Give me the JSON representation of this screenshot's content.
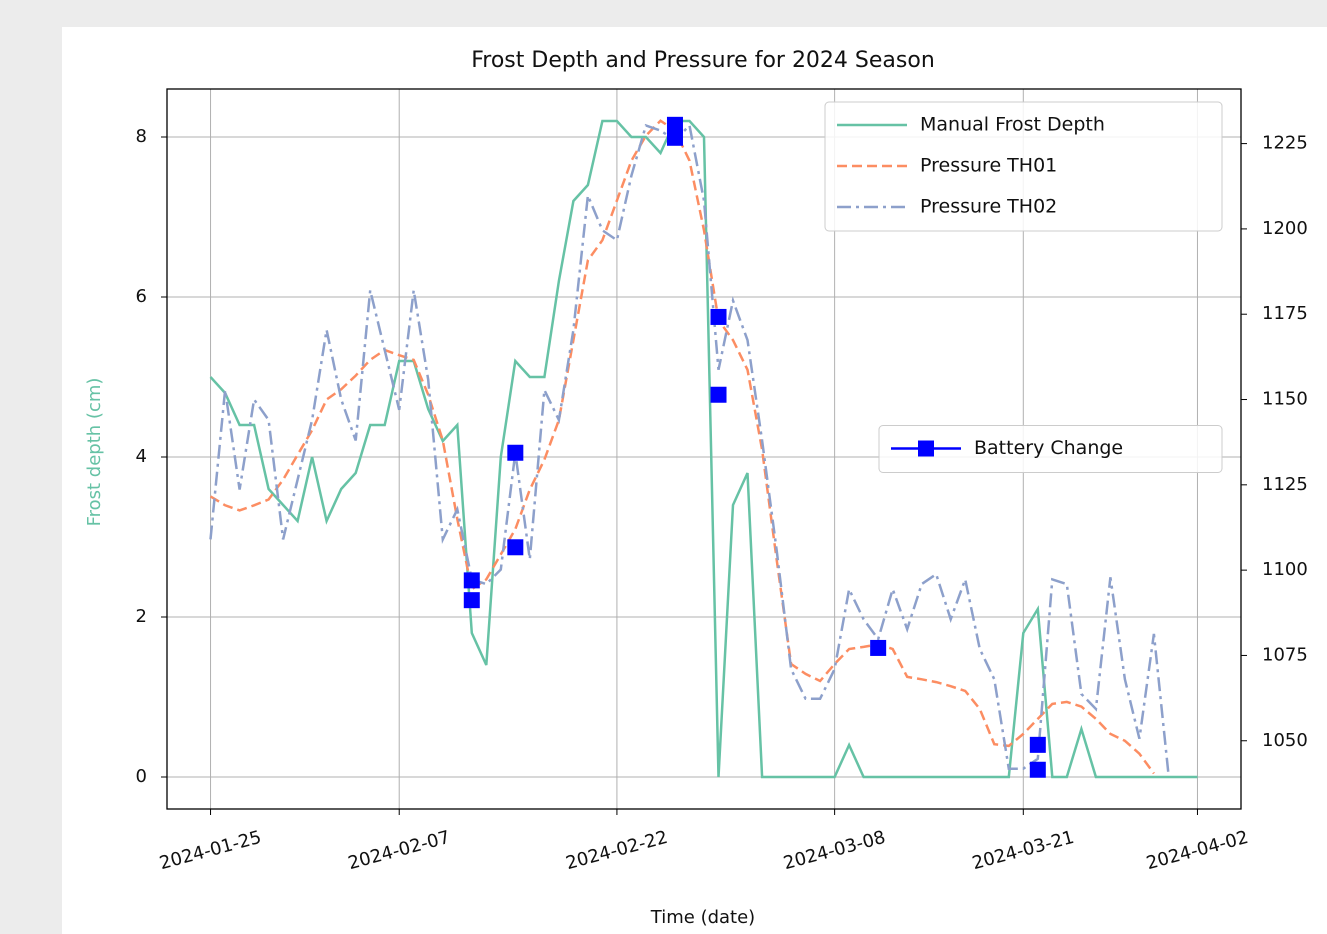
{
  "chart_data": {
    "type": "line",
    "title": "Frost Depth and Pressure for 2024 Season",
    "xlabel": "Time (date)",
    "ylabel": "Frost depth (cm)",
    "ylabel_color": "#66c2a5",
    "x": [
      "2024-01-25",
      "2024-01-26",
      "2024-01-27",
      "2024-01-28",
      "2024-01-29",
      "2024-01-30",
      "2024-01-31",
      "2024-02-01",
      "2024-02-02",
      "2024-02-03",
      "2024-02-04",
      "2024-02-05",
      "2024-02-06",
      "2024-02-07",
      "2024-02-08",
      "2024-02-09",
      "2024-02-10",
      "2024-02-11",
      "2024-02-12",
      "2024-02-13",
      "2024-02-14",
      "2024-02-15",
      "2024-02-16",
      "2024-02-17",
      "2024-02-18",
      "2024-02-19",
      "2024-02-20",
      "2024-02-21",
      "2024-02-22",
      "2024-02-23",
      "2024-02-24",
      "2024-02-25",
      "2024-02-26",
      "2024-02-27",
      "2024-02-28",
      "2024-02-29",
      "2024-03-01",
      "2024-03-02",
      "2024-03-03",
      "2024-03-04",
      "2024-03-05",
      "2024-03-06",
      "2024-03-07",
      "2024-03-08",
      "2024-03-09",
      "2024-03-10",
      "2024-03-11",
      "2024-03-12",
      "2024-03-13",
      "2024-03-14",
      "2024-03-15",
      "2024-03-16",
      "2024-03-17",
      "2024-03-18",
      "2024-03-19",
      "2024-03-20",
      "2024-03-21",
      "2024-03-22",
      "2024-03-23",
      "2024-03-24",
      "2024-03-25",
      "2024-03-26",
      "2024-03-27",
      "2024-03-28",
      "2024-03-29",
      "2024-03-30",
      "2024-03-31",
      "2024-04-01",
      "2024-04-02"
    ],
    "series": [
      {
        "name": "Manual Frost Depth",
        "color": "#66c2a5",
        "style": "solid",
        "axis": "y",
        "legend": "upper right",
        "values": [
          5.0,
          4.8,
          4.4,
          4.4,
          3.6,
          3.4,
          3.2,
          4.0,
          3.2,
          3.6,
          3.8,
          4.4,
          4.4,
          5.2,
          5.2,
          4.6,
          4.2,
          4.4,
          1.8,
          1.4,
          4.0,
          5.2,
          5.0,
          5.0,
          6.2,
          7.2,
          7.4,
          8.2,
          8.2,
          8.0,
          8.0,
          7.8,
          8.2,
          8.2,
          8.0,
          0,
          3.4,
          3.8,
          0,
          0,
          0,
          0,
          0,
          0,
          0.4,
          0,
          0,
          0,
          0,
          0,
          0,
          0,
          0,
          0,
          0,
          0,
          1.8,
          2.1,
          0,
          0,
          0.6,
          0,
          0,
          0,
          0,
          0,
          0,
          0,
          0
        ]
      },
      {
        "name": "Pressure TH01",
        "color": "#fc8d62",
        "style": "dashed",
        "axis": "y2",
        "legend": "upper right",
        "values": [
          1121.6,
          1119,
          1117.5,
          1119,
          1120.7,
          1126.5,
          1133.8,
          1141,
          1150,
          1153,
          1157,
          1161.6,
          1164.5,
          1163,
          1161.6,
          1151.4,
          1138,
          1115,
          1094.4,
          1097.3,
          1104.6,
          1112,
          1123.6,
          1132.4,
          1144,
          1167.4,
          1190.8,
          1196.7,
          1208.3,
          1220,
          1227.3,
          1231.7,
          1228.8,
          1220,
          1199.6,
          1173.3,
          1167.4,
          1158.7,
          1135.3,
          1103.2,
          1072.5,
          1069.6,
          1067.5,
          1072.5,
          1076.9,
          1077.5,
          1078.3,
          1076.9,
          1068.7,
          1068,
          1067.2,
          1066,
          1064.6,
          1059.3,
          1049,
          1048.5,
          1052,
          1056.4,
          1060.8,
          1061.4,
          1060,
          1056.4,
          1052,
          1050,
          1046.2,
          1040.4,
          null,
          null,
          null
        ]
      },
      {
        "name": "Pressure TH02",
        "color": "#8da0cb",
        "style": "dashdot",
        "axis": "y2",
        "legend": "upper right",
        "values": [
          1109,
          1152.8,
          1123.6,
          1150,
          1144,
          1109,
          1126.5,
          1144,
          1170.4,
          1150,
          1138,
          1182,
          1164.5,
          1147,
          1182,
          1155.8,
          1109,
          1117.8,
          1097.3,
          1095.9,
          1100.2,
          1134.4,
          1103.2,
          1152.8,
          1144,
          1170.4,
          1209.8,
          1199.6,
          1196.7,
          1215.6,
          1230.3,
          1228.8,
          1226,
          1230.3,
          1208.3,
          1158.7,
          1179,
          1167.4,
          1138,
          1106,
          1071,
          1062.3,
          1062.3,
          1071,
          1094.4,
          1085.6,
          1079.8,
          1094.4,
          1082.7,
          1095.9,
          1098.8,
          1085.6,
          1097.3,
          1076.9,
          1068,
          1041.8,
          1041.8,
          1044.7,
          1097.3,
          1095.9,
          1063.7,
          1059.3,
          1097.9,
          1068,
          1050.6,
          1081.3,
          1040.4,
          null,
          null
        ]
      },
      {
        "name": "Battery Change",
        "color": "#0000ff",
        "style": "marker",
        "axis": "y2",
        "legend": "center right",
        "x": [
          "2024-02-12",
          "2024-02-12",
          "2024-02-15",
          "2024-02-15",
          "2024-02-26",
          "2024-02-26",
          "2024-02-29",
          "2024-02-29",
          "2024-03-11",
          "2024-03-22",
          "2024-03-22"
        ],
        "values": [
          1097,
          1091.2,
          1134.4,
          1106.7,
          1230.5,
          1226.7,
          1174.2,
          1151.4,
          1077.2,
          1048.8,
          1041.5
        ]
      }
    ],
    "xlim": [
      "2024-01-22",
      "2024-04-05"
    ],
    "xticks": [
      "2024-01-25",
      "2024-02-07",
      "2024-02-22",
      "2024-03-08",
      "2024-03-21",
      "2024-04-02"
    ],
    "ylim": [
      -0.4,
      8.6
    ],
    "yticks": [
      0,
      2,
      4,
      6,
      8
    ],
    "y2lim": [
      1030,
      1241
    ],
    "y2ticks": [
      1050,
      1075,
      1100,
      1125,
      1150,
      1175,
      1200,
      1225
    ],
    "grid": true
  }
}
